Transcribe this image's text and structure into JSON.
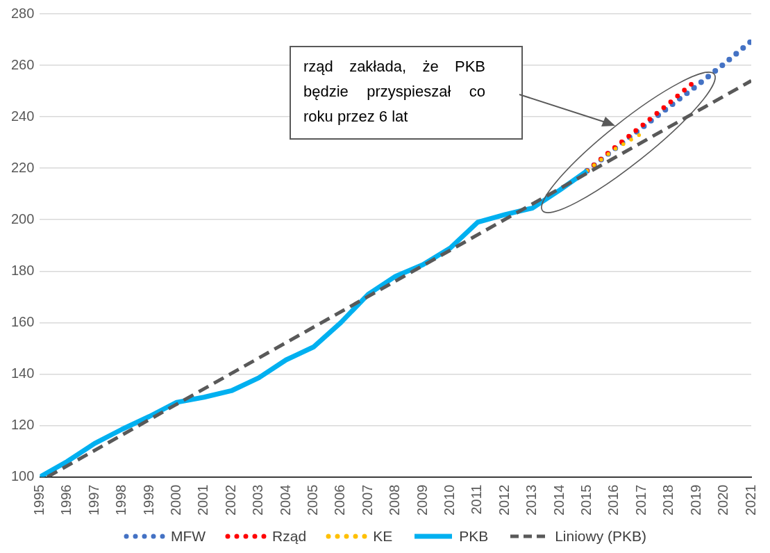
{
  "chart_data": {
    "type": "line",
    "xlim": [
      1995,
      2021
    ],
    "xticks": [
      1995,
      1996,
      1997,
      1998,
      1999,
      2000,
      2001,
      2002,
      2003,
      2004,
      2005,
      2006,
      2007,
      2008,
      2009,
      2010,
      2011,
      2012,
      2013,
      2014,
      2015,
      2016,
      2017,
      2018,
      2019,
      2020,
      2021
    ],
    "ylim": [
      100,
      280
    ],
    "yticks": [
      100,
      120,
      140,
      160,
      180,
      200,
      220,
      240,
      260,
      280
    ],
    "grid": "y",
    "legend": "bottom",
    "marker": "none",
    "series": [
      {
        "name": "MFW",
        "line_style": "dotted",
        "color": "#4472c4",
        "x": [
          2015,
          2016,
          2017,
          2018,
          2019,
          2020,
          2021
        ],
        "values": [
          219,
          227.5,
          235.7,
          243.9,
          252,
          260.5,
          269.4
        ]
      },
      {
        "name": "Rząd",
        "line_style": "dotted",
        "color": "#ff0000",
        "x": [
          2015,
          2016,
          2017,
          2018,
          2019
        ],
        "values": [
          219,
          228,
          236.5,
          245.3,
          254.4
        ]
      },
      {
        "name": "KE",
        "line_style": "dotted",
        "color": "#ffc000",
        "x": [
          2015,
          2016,
          2017
        ],
        "values": [
          219,
          227.4,
          233.5
        ]
      },
      {
        "name": "PKB",
        "line_style": "solid",
        "color": "#00b0f0",
        "x": [
          1995,
          1996,
          1997,
          1998,
          1999,
          2000,
          2001,
          2002,
          2003,
          2004,
          2005,
          2006,
          2007,
          2008,
          2009,
          2010,
          2011,
          2012,
          2013,
          2014,
          2015
        ],
        "values": [
          100,
          106,
          113,
          118.5,
          123.5,
          129,
          131,
          133.5,
          138.5,
          145.5,
          150.5,
          160,
          171,
          178,
          182.5,
          189,
          199,
          202,
          204.5,
          211.5,
          219
        ]
      },
      {
        "name": "Liniowy (PKB)",
        "line_style": "dashed",
        "color": "#595959",
        "x": [
          1995.28,
          2021
        ],
        "values": [
          100,
          254
        ]
      }
    ],
    "annotations": [
      "rząd zakłada, że PKB będzie przyspieszał co roku przez 6 lat"
    ]
  }
}
